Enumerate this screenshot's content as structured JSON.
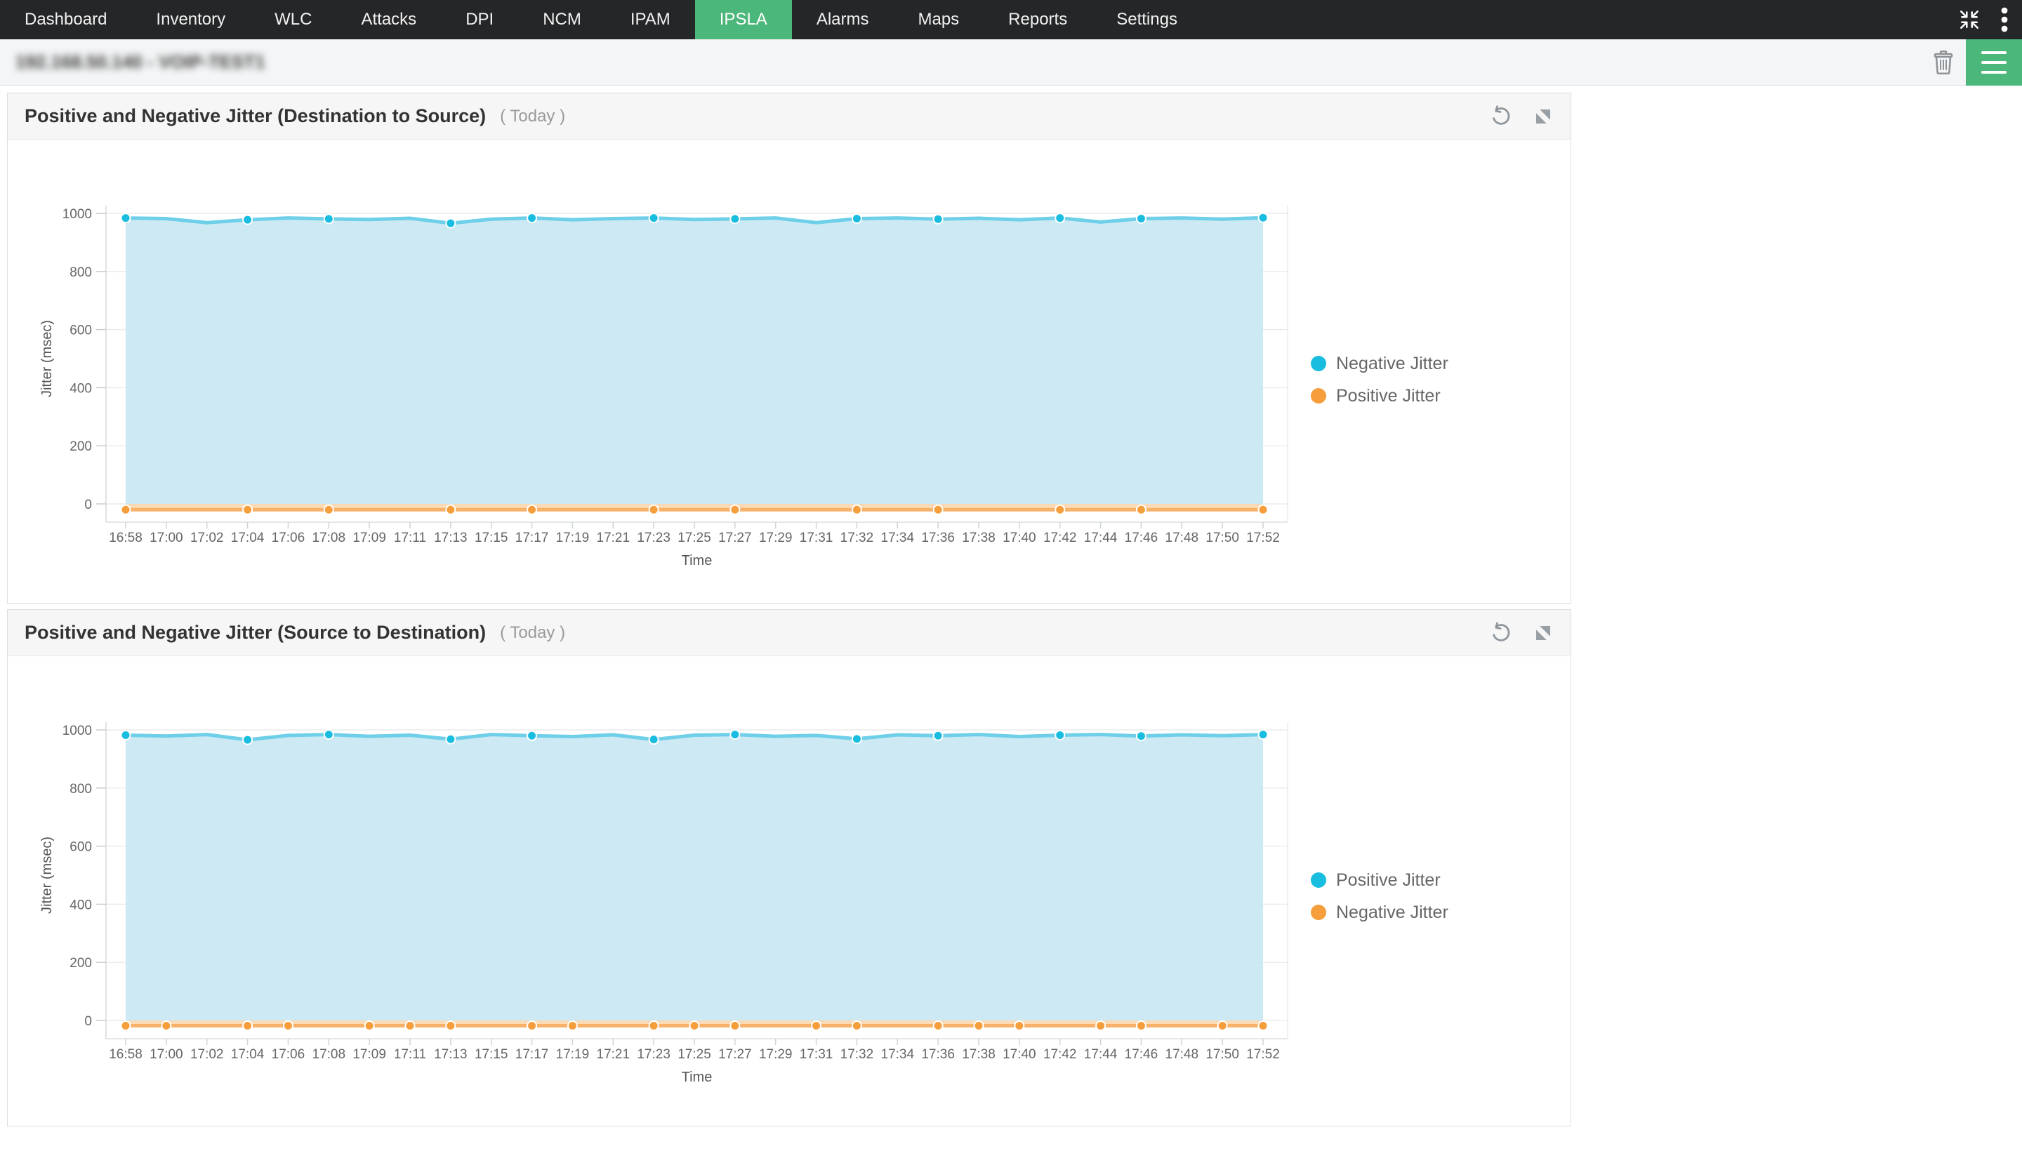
{
  "nav": {
    "items": [
      {
        "label": "Dashboard",
        "active": false
      },
      {
        "label": "Inventory",
        "active": false
      },
      {
        "label": "WLC",
        "active": false
      },
      {
        "label": "Attacks",
        "active": false
      },
      {
        "label": "DPI",
        "active": false
      },
      {
        "label": "NCM",
        "active": false
      },
      {
        "label": "IPAM",
        "active": false
      },
      {
        "label": "IPSLA",
        "active": true
      },
      {
        "label": "Alarms",
        "active": false
      },
      {
        "label": "Maps",
        "active": false
      },
      {
        "label": "Reports",
        "active": false
      },
      {
        "label": "Settings",
        "active": false
      }
    ]
  },
  "toolbar": {
    "device_label": "192.168.50.140 - VOIP-TEST1"
  },
  "panels": [
    {
      "title": "Positive and Negative Jitter (Destination to Source)",
      "period": "( Today )"
    },
    {
      "title": "Positive and Negative Jitter (Source to Destination)",
      "period": "( Today )"
    }
  ],
  "colors": {
    "accent_green": "#4cb77a",
    "nav_bg": "#252628",
    "cyan_marker": "#19bde0",
    "cyan_line": "#6ecfe9",
    "cyan_fill": "#cae8f3",
    "orange_marker": "#f59e3b",
    "orange_line": "#f8b168",
    "orange_fill": "#fbd9b2"
  },
  "chart_data": [
    {
      "type": "area",
      "title": "Positive and Negative Jitter (Destination to Source)",
      "period": "Today",
      "xlabel": "Time",
      "ylabel": "Jitter (msec)",
      "ylim": [
        0,
        1000
      ],
      "yticks": [
        0,
        200,
        400,
        600,
        800,
        1000
      ],
      "grid": true,
      "legend_position": "right",
      "categories": [
        "16:58",
        "17:00",
        "17:02",
        "17:04",
        "17:06",
        "17:08",
        "17:09",
        "17:11",
        "17:13",
        "17:15",
        "17:17",
        "17:19",
        "17:21",
        "17:23",
        "17:25",
        "17:27",
        "17:29",
        "17:31",
        "17:32",
        "17:34",
        "17:36",
        "17:38",
        "17:40",
        "17:42",
        "17:44",
        "17:46",
        "17:48",
        "17:50",
        "17:52"
      ],
      "series": [
        {
          "name": "Negative Jitter",
          "color": "#19bde0",
          "line_color": "#6ecfe9",
          "fill_color": "#cae8f3",
          "marker_count": 12,
          "values": [
            984,
            982,
            968,
            978,
            984,
            981,
            979,
            983,
            966,
            980,
            984,
            978,
            982,
            984,
            979,
            981,
            984,
            968,
            982,
            984,
            980,
            983,
            978,
            984,
            970,
            982,
            984,
            980,
            985
          ]
        },
        {
          "name": "Positive Jitter",
          "color": "#f59e3b",
          "line_color": "#f8b168",
          "fill_color": "#fbd9b2",
          "marker_count": 12,
          "values": [
            -20,
            -20,
            -20,
            -20,
            -20,
            -20,
            -20,
            -20,
            -20,
            -20,
            -20,
            -20,
            -20,
            -20,
            -20,
            -20,
            -20,
            -20,
            -20,
            -20,
            -20,
            -20,
            -20,
            -20,
            -20,
            -20,
            -20,
            -20,
            -20
          ]
        }
      ]
    },
    {
      "type": "area",
      "title": "Positive and Negative Jitter (Source to Destination)",
      "period": "Today",
      "xlabel": "Time",
      "ylabel": "Jitter (msec)",
      "ylim": [
        0,
        1000
      ],
      "yticks": [
        0,
        200,
        400,
        600,
        800,
        1000
      ],
      "grid": true,
      "legend_position": "right",
      "categories": [
        "16:58",
        "17:00",
        "17:02",
        "17:04",
        "17:06",
        "17:08",
        "17:09",
        "17:11",
        "17:13",
        "17:15",
        "17:17",
        "17:19",
        "17:21",
        "17:23",
        "17:25",
        "17:27",
        "17:29",
        "17:31",
        "17:32",
        "17:34",
        "17:36",
        "17:38",
        "17:40",
        "17:42",
        "17:44",
        "17:46",
        "17:48",
        "17:50",
        "17:52"
      ],
      "series": [
        {
          "name": "Positive Jitter",
          "color": "#19bde0",
          "line_color": "#6ecfe9",
          "fill_color": "#cae8f3",
          "marker_count": 12,
          "values": [
            982,
            979,
            984,
            966,
            981,
            984,
            978,
            982,
            968,
            984,
            980,
            977,
            983,
            967,
            982,
            984,
            978,
            981,
            969,
            983,
            980,
            984,
            977,
            982,
            984,
            979,
            983,
            980,
            984
          ]
        },
        {
          "name": "Negative Jitter",
          "color": "#f59e3b",
          "line_color": "#f8b168",
          "fill_color": "#fbd9b2",
          "marker_count": 21,
          "values": [
            -18,
            -18,
            -18,
            -18,
            -18,
            -18,
            -18,
            -18,
            -18,
            -18,
            -18,
            -18,
            -18,
            -18,
            -18,
            -18,
            -18,
            -18,
            -18,
            -18,
            -18,
            -18,
            -18,
            -18,
            -18,
            -18,
            -18,
            -18,
            -18
          ]
        }
      ]
    }
  ]
}
